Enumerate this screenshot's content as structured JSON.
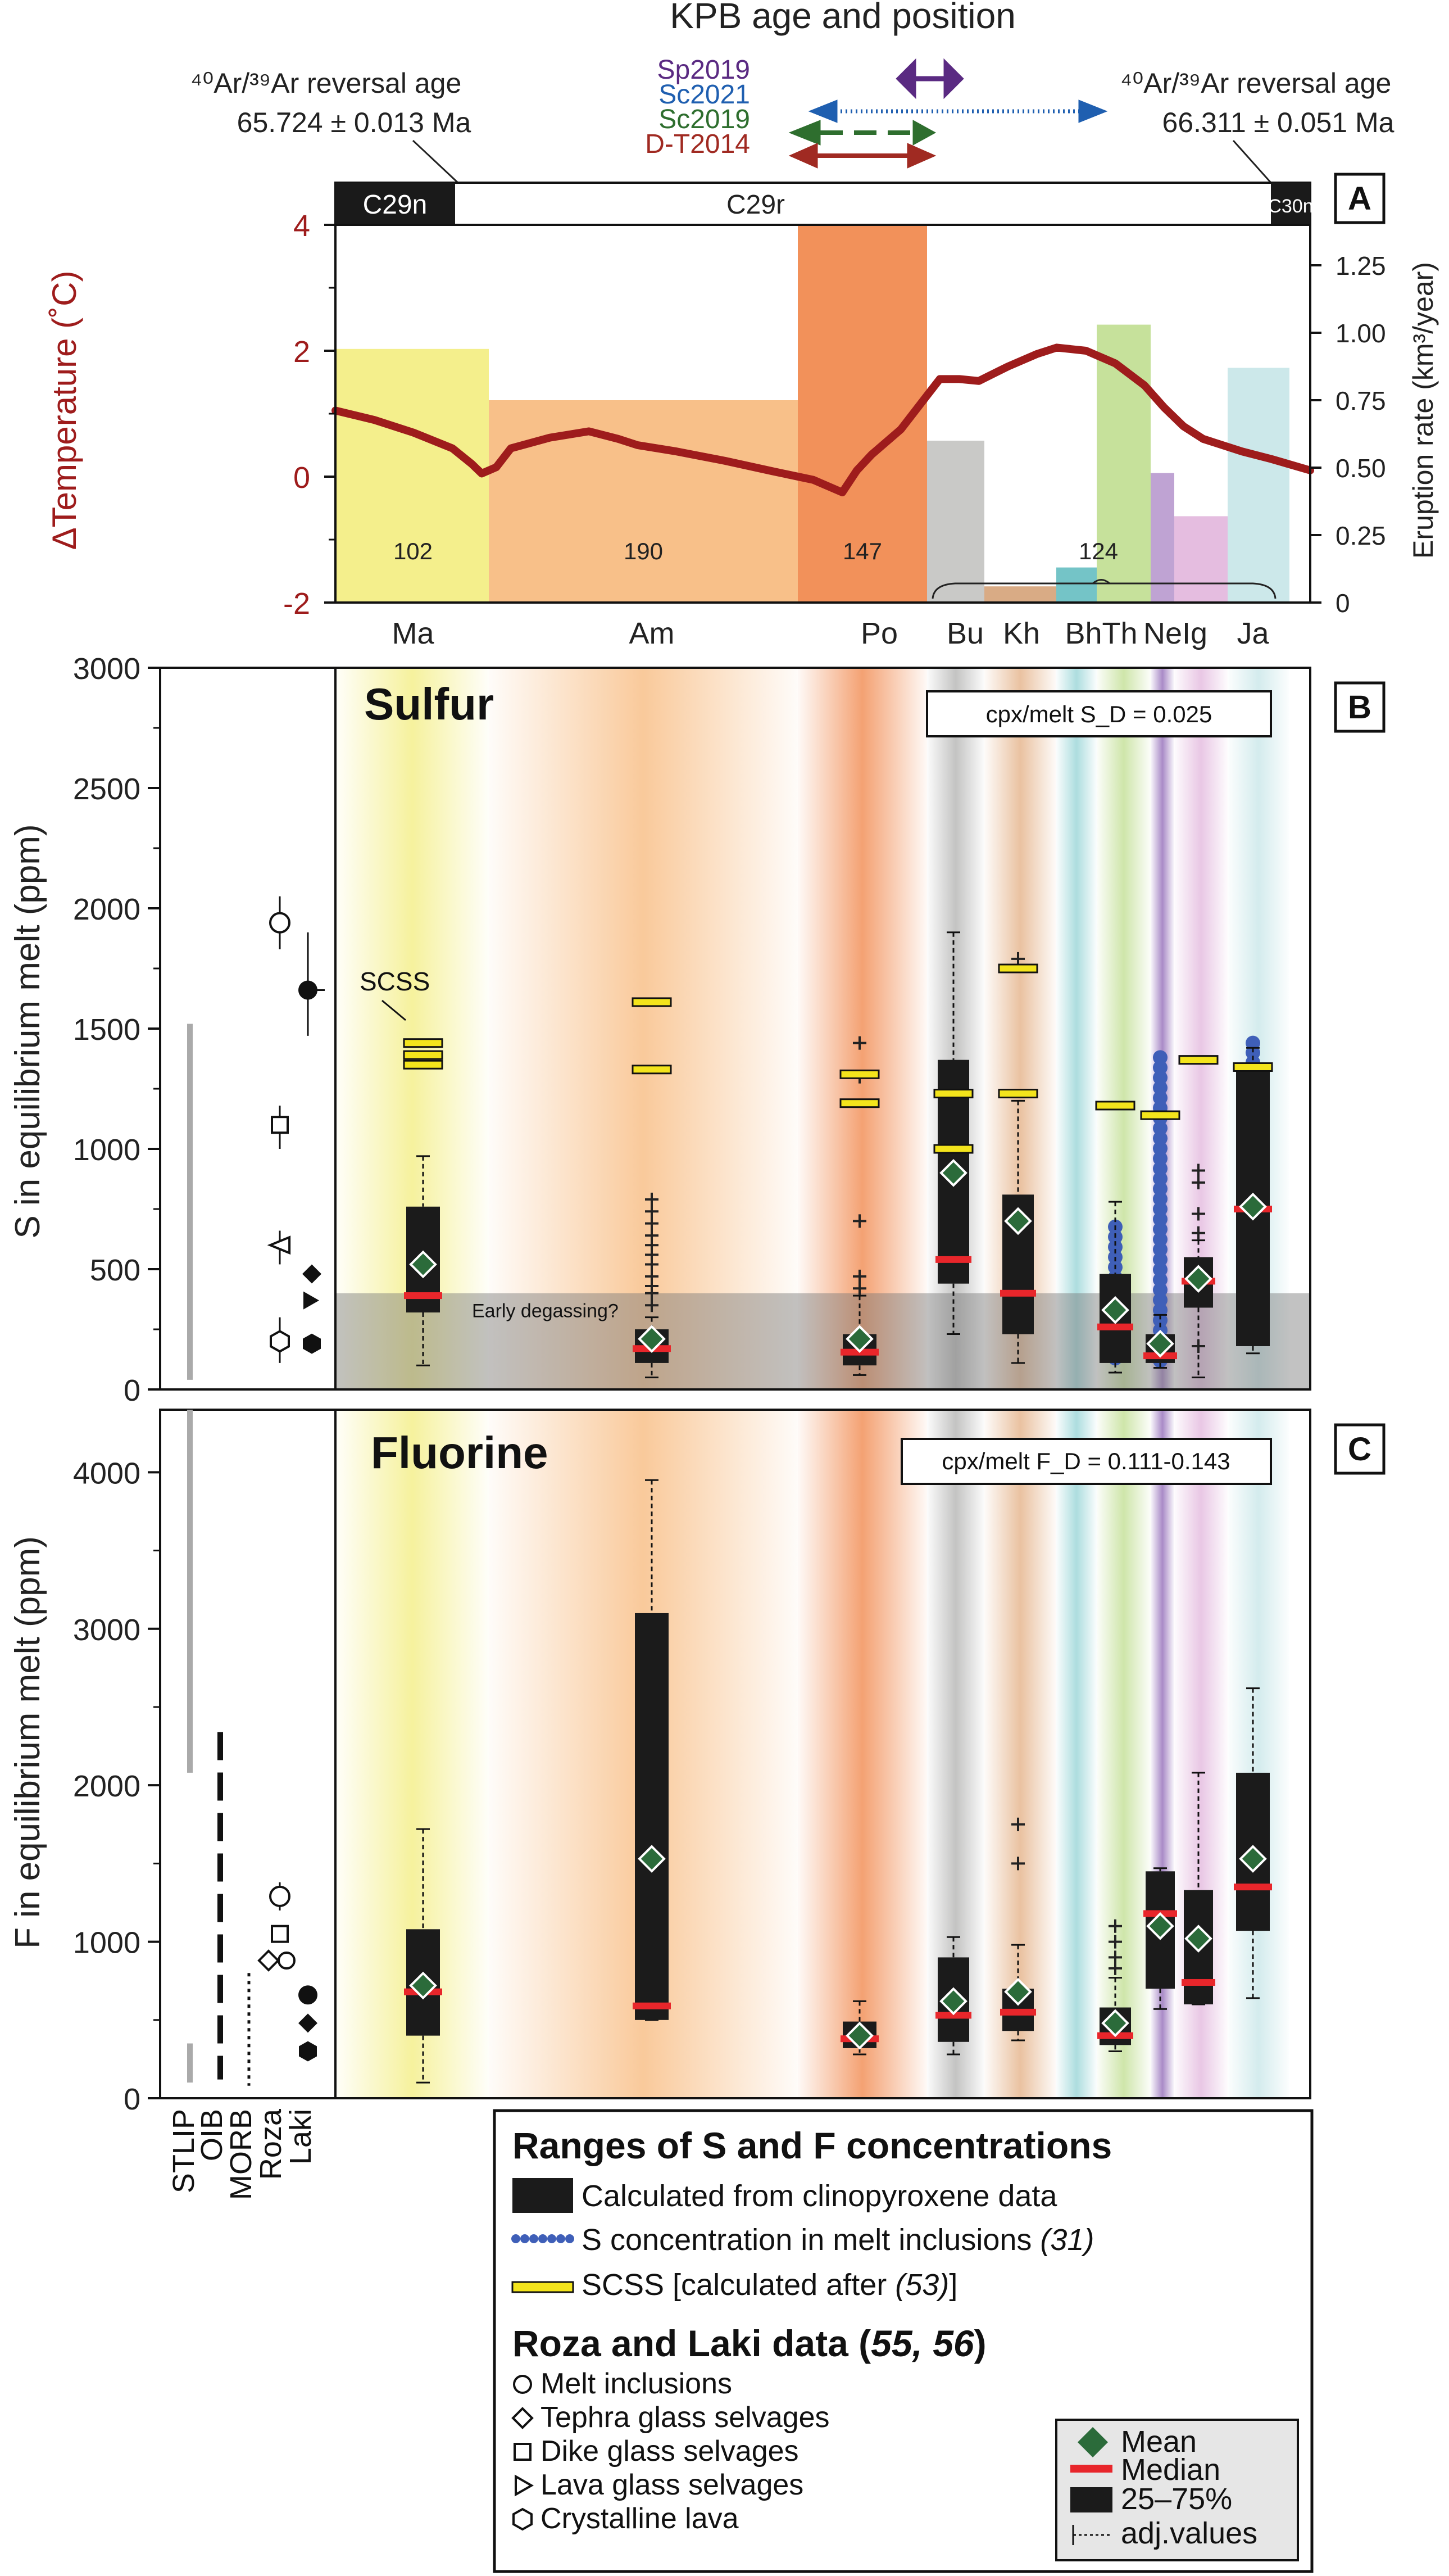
{
  "chart_data": [
    {
      "panel_label": "A",
      "type": "bar",
      "header": {
        "title": "KPB age and position",
        "left_age_label": "⁴⁰Ar/³⁹Ar reversal age",
        "left_age_value": "65.724 ± 0.013 Ma",
        "right_age_label": "⁴⁰Ar/³⁹Ar reversal age",
        "right_age_value": "66.311 ± 0.051 Ma",
        "studies": [
          {
            "name": "Sp2019",
            "color": "#5a2a82"
          },
          {
            "name": "Sc2021",
            "color": "#1f5fb0"
          },
          {
            "name": "Sc2019",
            "color": "#2e6e2e"
          },
          {
            "name": "D-T2014",
            "color": "#a02a22"
          }
        ]
      },
      "chrons": [
        "C29n",
        "C29r",
        "C30n"
      ],
      "ylabel_left": "ΔTemperature (˚C)",
      "ylim_left": [
        -2,
        4
      ],
      "yticks_left": [
        "-2",
        "0",
        "2",
        "4"
      ],
      "ylabel_right": "Eruption rate (km³/year)",
      "ylim_right": [
        0,
        1.4
      ],
      "yticks_right": [
        "0",
        "0.25",
        "0.50",
        "0.75",
        "1.00",
        "1.25"
      ],
      "categories": [
        "Ma",
        "Am",
        "Po",
        "Bu",
        "Kh",
        "BhTh",
        "NeIg",
        "Ja"
      ],
      "eruption_rate": [
        {
          "unit": "Ma",
          "value": 0.94,
          "color": "#f4ef8c"
        },
        {
          "unit": "Am",
          "value": 0.75,
          "color": "#f8c089"
        },
        {
          "unit": "Po",
          "value": 1.4,
          "color": "#f2915a"
        },
        {
          "unit": "Bu",
          "value": 0.6,
          "color": "#c9c9c7"
        },
        {
          "unit": "Kh",
          "value": 0.06,
          "color": "#d9ab85"
        },
        {
          "unit": "Bh",
          "value": 0.13,
          "color": "#74c4c7"
        },
        {
          "unit": "Th",
          "value": 1.03,
          "color": "#c6e19b"
        },
        {
          "unit": "Ne",
          "value": 0.48,
          "color": "#bfa3d3"
        },
        {
          "unit": "Ig",
          "value": 0.32,
          "color": "#e5bde0"
        },
        {
          "unit": "Ja",
          "value": 0.87,
          "color": "#cce8ea"
        }
      ],
      "volume_labels": [
        "102",
        "190",
        "147",
        "124"
      ],
      "temperature_series": {
        "color": "#9e1c1c",
        "x": [
          0,
          4,
          8,
          12,
          14,
          15,
          16.5,
          18,
          22,
          26,
          29,
          31,
          35,
          40,
          45,
          49,
          52,
          53.5,
          55,
          58,
          61,
          62,
          64,
          66,
          69,
          72,
          74,
          77,
          80,
          83,
          85,
          87,
          89,
          91,
          93,
          96,
          100
        ],
        "y": [
          1.05,
          0.9,
          0.7,
          0.45,
          0.2,
          0.05,
          0.15,
          0.45,
          0.62,
          0.72,
          0.6,
          0.5,
          0.4,
          0.25,
          0.08,
          -0.05,
          -0.25,
          0.1,
          0.35,
          0.75,
          1.35,
          1.55,
          1.55,
          1.52,
          1.75,
          1.95,
          2.05,
          2.0,
          1.8,
          1.45,
          1.1,
          0.8,
          0.6,
          0.5,
          0.4,
          0.28,
          0.1
        ]
      }
    },
    {
      "panel_label": "B",
      "type": "box",
      "title": "Sulfur",
      "note": "cpx/melt S_D = 0.025",
      "ylabel": "S in equilibrium melt (ppm)",
      "ylim": [
        0,
        3000
      ],
      "yticks": [
        "0",
        "500",
        "1000",
        "1500",
        "2000",
        "2500",
        "3000"
      ],
      "shaded_band_label": "Early degassing?",
      "shaded_band_range": [
        0,
        400
      ],
      "scss_callout": "SCSS",
      "reference_columns": [
        "STLIP",
        "OIB",
        "MORB",
        "Roza",
        "Laki"
      ],
      "boxes": [
        {
          "unit": "Ma",
          "min": 100,
          "q1": 320,
          "median": 390,
          "q3": 760,
          "max": 970,
          "mean": 520,
          "outliers": [],
          "scss": [
            1350,
            1390,
            1440
          ]
        },
        {
          "unit": "Am",
          "min": 50,
          "q1": 110,
          "median": 170,
          "q3": 250,
          "max": 300,
          "mean": 210,
          "outliers": [
            350,
            400,
            430,
            470,
            520,
            560,
            600,
            640,
            690,
            740,
            790
          ],
          "scss": [
            1330,
            1610
          ]
        },
        {
          "unit": "Po",
          "min": 60,
          "q1": 100,
          "median": 155,
          "q3": 230,
          "max": 390,
          "mean": 210,
          "outliers": [
            420,
            470,
            700,
            1300,
            1440
          ],
          "scss": [
            1190,
            1310
          ]
        },
        {
          "unit": "Bu",
          "min": 230,
          "q1": 440,
          "median": 540,
          "q3": 1370,
          "max": 1900,
          "mean": 900,
          "outliers": [],
          "scss": [
            1000,
            1230
          ]
        },
        {
          "unit": "Kh",
          "min": 110,
          "q1": 230,
          "median": 400,
          "q3": 810,
          "max": 1200,
          "mean": 700,
          "outliers": [
            1760,
            1790
          ],
          "scss": [
            1230,
            1750
          ]
        },
        {
          "unit": "Th",
          "min": 70,
          "q1": 110,
          "median": 260,
          "q3": 480,
          "max": 780,
          "mean": 330,
          "outliers": [],
          "scss": [
            1180
          ]
        },
        {
          "unit": "Ne",
          "min": 90,
          "q1": 110,
          "median": 140,
          "q3": 230,
          "max": 310,
          "mean": 190,
          "outliers": [],
          "scss": [
            1140
          ]
        },
        {
          "unit": "Ig",
          "min": 50,
          "q1": 340,
          "median": 450,
          "q3": 550,
          "max": 620,
          "mean": 460,
          "outliers": [
            180,
            650,
            730,
            860,
            910
          ],
          "scss": [
            1370
          ]
        },
        {
          "unit": "Ja",
          "min": 150,
          "q1": 180,
          "median": 750,
          "q3": 1330,
          "max": 1420,
          "mean": 760,
          "outliers": [],
          "scss": [
            1340
          ]
        }
      ]
    },
    {
      "panel_label": "C",
      "type": "box",
      "title": "Fluorine",
      "note": "cpx/melt F_D = 0.111-0.143",
      "ylabel": "F in equilibrium melt (ppm)",
      "ylim": [
        0,
        4500
      ],
      "yticks": [
        "0",
        "1000",
        "2000",
        "3000",
        "4000"
      ],
      "reference_columns": [
        "STLIP",
        "OIB",
        "MORB",
        "Roza",
        "Laki"
      ],
      "boxes": [
        {
          "unit": "Ma",
          "min": 100,
          "q1": 400,
          "median": 680,
          "q3": 1080,
          "max": 1720,
          "mean": 720,
          "outliers": []
        },
        {
          "unit": "Am",
          "min": 500,
          "q1": 500,
          "median": 590,
          "q3": 3100,
          "max": 3950,
          "mean": 1530,
          "outliers": []
        },
        {
          "unit": "Po",
          "min": 280,
          "q1": 320,
          "median": 380,
          "q3": 490,
          "max": 620,
          "mean": 400,
          "outliers": []
        },
        {
          "unit": "Bu",
          "min": 280,
          "q1": 360,
          "median": 530,
          "q3": 900,
          "max": 1030,
          "mean": 620,
          "outliers": []
        },
        {
          "unit": "Kh",
          "min": 370,
          "q1": 430,
          "median": 550,
          "q3": 700,
          "max": 980,
          "mean": 680,
          "outliers": [
            1500,
            1750
          ]
        },
        {
          "unit": "Th",
          "min": 300,
          "q1": 340,
          "median": 400,
          "q3": 580,
          "max": 770,
          "mean": 480,
          "outliers": [
            830,
            900,
            1000,
            1100
          ]
        },
        {
          "unit": "Ne",
          "min": 570,
          "q1": 700,
          "median": 1180,
          "q3": 1450,
          "max": 1470,
          "mean": 1100,
          "outliers": []
        },
        {
          "unit": "Ig",
          "min": 600,
          "q1": 600,
          "median": 740,
          "q3": 1330,
          "max": 2080,
          "mean": 1020,
          "outliers": []
        },
        {
          "unit": "Ja",
          "min": 640,
          "q1": 1070,
          "median": 1350,
          "q3": 2080,
          "max": 2620,
          "mean": 1530,
          "outliers": []
        }
      ]
    }
  ],
  "legend": {
    "title": "Ranges of S and F concentrations",
    "items": [
      {
        "label": "Calculated from clinopyroxene data"
      },
      {
        "label": "S concentration in melt inclusions",
        "ref": "(31)"
      },
      {
        "label": "SCSS [calculated after ",
        "ref": "(53)",
        "suffix": "]"
      }
    ],
    "roza_laki_title": "Roza and Laki data (",
    "roza_laki_refs": "55, 56",
    "roza_laki_close": ")",
    "symbol_items": [
      {
        "symbol": "circle",
        "label": "Melt inclusions"
      },
      {
        "symbol": "diamond",
        "label": "Tephra glass selvages"
      },
      {
        "symbol": "square",
        "label": "Dike glass selvages"
      },
      {
        "symbol": "triangle",
        "label": "Lava glass selvages"
      },
      {
        "symbol": "hexagon",
        "label": "Crystalline lava"
      }
    ],
    "box_key": [
      "Mean",
      "Median",
      "25–75%",
      "adj.values"
    ]
  },
  "colors": {
    "dark_red": "#9e1c1c",
    "median": "#e8262b",
    "mean": "#2b6b3a",
    "scss": "#f3e41c",
    "melt_inclusion": "#3f5fb8",
    "box": "#1b1b1b"
  }
}
